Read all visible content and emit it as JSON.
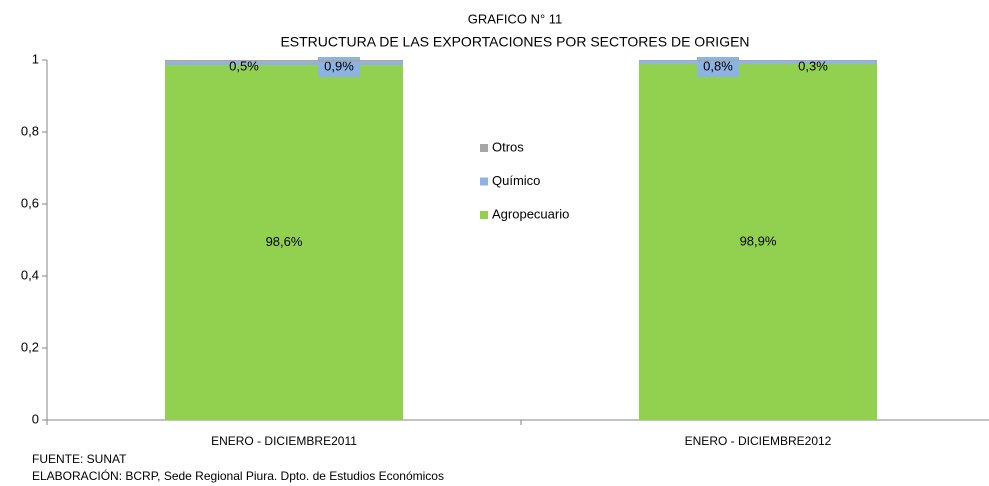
{
  "chart_data": {
    "type": "stacked_bar",
    "title": "GRAFICO N° 11",
    "subtitle": "ESTRUCTURA DE LAS EXPORTACIONES POR SECTORES DE ORIGEN",
    "categories": [
      "ENERO - DICIEMBRE2011",
      "ENERO - DICIEMBRE2012"
    ],
    "series": [
      {
        "name": "Agropecuario",
        "color": "#92d050",
        "values": [
          0.986,
          0.989
        ],
        "value_labels": [
          "98,6%",
          "98,9%"
        ]
      },
      {
        "name": "Químico",
        "color": "#8db3e2",
        "values": [
          0.009,
          0.008
        ],
        "value_labels": [
          "0,9%",
          "0,8%"
        ]
      },
      {
        "name": "Otros",
        "color": "#a6a6a6",
        "values": [
          0.005,
          0.003
        ],
        "value_labels": [
          "0,5%",
          "0,3%"
        ]
      }
    ],
    "ylim": [
      0,
      1
    ],
    "yticks": [
      0,
      {
        "value": 0.2,
        "label": "0,2"
      },
      {
        "value": 0.4,
        "label": "0,4"
      },
      {
        "value": 0.6,
        "label": "0,6"
      },
      {
        "value": 0.8,
        "label": "0,8"
      },
      1
    ],
    "notes": [
      "FUENTE: SUNAT",
      "ELABORACIÓN: BCRP, Sede Regional Piura. Dpto. de Estudios Económicos"
    ]
  }
}
